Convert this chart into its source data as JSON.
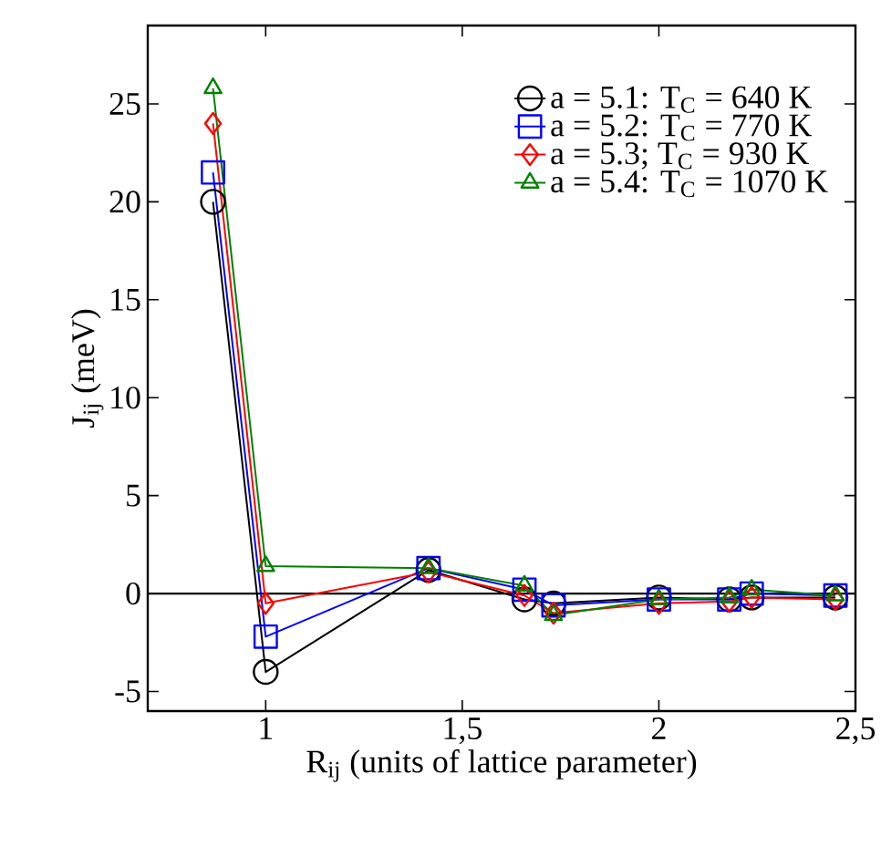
{
  "chart_data": {
    "type": "line",
    "xlabel": "R$_{ij}$ (units of lattice parameter)",
    "ylabel": "J$_{ij}$ (meV)",
    "x": [
      0.866,
      1.0,
      1.414,
      1.658,
      1.732,
      2.0,
      2.179,
      2.236,
      2.449
    ],
    "series": [
      {
        "name": "a = 5.1: T$_{C}$ = 640 K",
        "color": "#000000",
        "marker": "circle",
        "values": [
          20,
          -4,
          1.2,
          -0.3,
          -0.5,
          -0.2,
          -0.3,
          -0.2,
          -0.2
        ]
      },
      {
        "name": "a = 5.2: T$_{C}$ = 770 K",
        "color": "#0000ff",
        "marker": "square",
        "values": [
          21.5,
          -2.2,
          1.3,
          0.2,
          -0.6,
          -0.3,
          -0.3,
          0,
          -0.1
        ]
      },
      {
        "name": "a = 5.3; T$_{C}$ = 930 K",
        "color": "#ff0000",
        "marker": "diamond",
        "values": [
          24,
          -0.5,
          1.1,
          -0.1,
          -1.0,
          -0.5,
          -0.4,
          -0.2,
          -0.3
        ]
      },
      {
        "name": "a = 5.4: T$_{C}$ = 1070 K",
        "color": "#008000",
        "marker": "triangle",
        "values": [
          25.8,
          1.4,
          1.3,
          0.4,
          -1.1,
          -0.3,
          -0.2,
          0.2,
          -0.1
        ]
      }
    ],
    "xlim": [
      0.7,
      2.5
    ],
    "ylim": [
      -6,
      29
    ],
    "xticks": [
      1,
      {
        "value": 1.5,
        "label": "1,5"
      },
      2,
      {
        "value": 2.5,
        "label": "2,5"
      }
    ],
    "yticks": [
      -5,
      0,
      5,
      10,
      15,
      20,
      25
    ],
    "ref_lines": [
      {
        "axis": "y",
        "value": 0,
        "color": "#000000"
      }
    ],
    "legend": "top right",
    "grid": false
  }
}
